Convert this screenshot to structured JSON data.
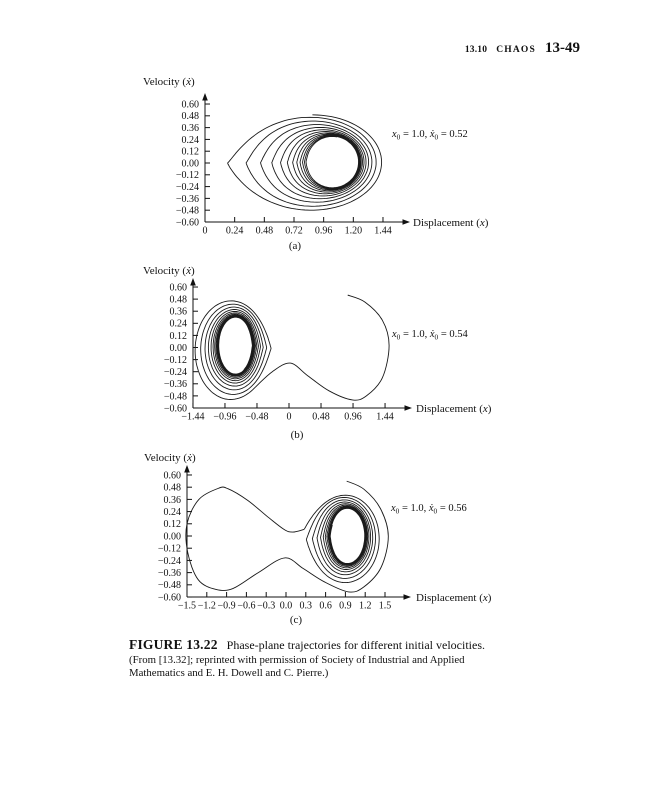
{
  "page": {
    "background": "#ffffff",
    "ink": "#111111",
    "curve_color": "#1a1a1a"
  },
  "header": {
    "section": "13.10",
    "chapter_title": "CHAOS",
    "page_number": "13-49"
  },
  "caption": {
    "figure_label": "FIGURE 13.22",
    "title": "Phase-plane trajectories for different initial velocities.",
    "source_lines": [
      "(From [13.32]; reprinted with permission of Society of Industrial and Applied",
      "Mathematics and E. H. Dowell and C. Pierre.)"
    ]
  },
  "chart_data": [
    {
      "type": "line",
      "panel_label": "(a)",
      "ylabel_parts": [
        {
          "t": "Velocity (",
          "s": "r"
        },
        {
          "t": "ẋ",
          "s": "i"
        },
        {
          "t": ")",
          "s": "r"
        }
      ],
      "xlabel_parts": [
        {
          "t": "Displacement (",
          "s": "r"
        },
        {
          "t": "x",
          "s": "i"
        },
        {
          "t": ")",
          "s": "r"
        }
      ],
      "annotation_parts": [
        {
          "t": "x",
          "s": "i"
        },
        {
          "t": "0",
          "s": "sub"
        },
        {
          "t": " = 1.0, ",
          "s": "r"
        },
        {
          "t": "ẋ",
          "s": "i"
        },
        {
          "t": "0",
          "s": "sub"
        },
        {
          "t": " = 0.52",
          "s": "r"
        }
      ],
      "initial_condition": {
        "x0": 1.0,
        "xdot0": 0.52
      },
      "xlim": [
        0,
        1.44
      ],
      "ylim": [
        -0.6,
        0.6
      ],
      "grid": false,
      "legend": false,
      "x_tick_values": [
        0,
        0.24,
        0.48,
        0.72,
        0.96,
        1.2,
        1.44
      ],
      "x_tick_labels": [
        "0",
        "0.24",
        "0.48",
        "0.72",
        "0.96",
        "1.20",
        "1.44"
      ],
      "y_tick_values": [
        0.6,
        0.48,
        0.36,
        0.24,
        0.12,
        0.0,
        -0.12,
        -0.24,
        -0.36,
        -0.48,
        -0.6
      ],
      "y_tick_labels": [
        "0.60",
        "0.48",
        "0.36",
        "0.24",
        "0.12",
        "0.00",
        "−0.12",
        "−0.24",
        "−0.36",
        "−0.48",
        "−0.60"
      ],
      "trajectory": {
        "description": "trajectory spirals from outer teardrop (tip near x=0.05, v=0) converging clockwise onto limit cycle around stable focus near x=1",
        "spiral": {
          "outer": {
            "cx": 0.745,
            "cy": 0.0,
            "w": 0.695,
            "h": 0.545,
            "q": 1.6
          },
          "inner": {
            "cx": 1.03,
            "cy": 0.01,
            "w": 0.21,
            "h": 0.26,
            "q": 6
          },
          "loops": 12,
          "decay": 0.25,
          "tip": "left",
          "start_phase": 1.75
        }
      }
    },
    {
      "type": "line",
      "panel_label": "(b)",
      "ylabel_parts": [
        {
          "t": "Velocity (",
          "s": "r"
        },
        {
          "t": "ẋ",
          "s": "i"
        },
        {
          "t": ")",
          "s": "r"
        }
      ],
      "xlabel_parts": [
        {
          "t": "Displacement (",
          "s": "r"
        },
        {
          "t": "x",
          "s": "i"
        },
        {
          "t": ")",
          "s": "r"
        }
      ],
      "annotation_parts": [
        {
          "t": "x",
          "s": "i"
        },
        {
          "t": "0",
          "s": "sub"
        },
        {
          "t": " = 1.0, ",
          "s": "r"
        },
        {
          "t": "ẋ",
          "s": "i"
        },
        {
          "t": "0",
          "s": "sub"
        },
        {
          "t": " = 0.54",
          "s": "r"
        }
      ],
      "initial_condition": {
        "x0": 1.0,
        "xdot0": 0.54
      },
      "xlim": [
        -1.44,
        1.44
      ],
      "ylim": [
        -0.6,
        0.6
      ],
      "grid": false,
      "legend": false,
      "x_tick_values": [
        -1.44,
        -0.96,
        -0.48,
        0,
        0.48,
        0.96,
        1.44
      ],
      "x_tick_labels": [
        "−1.44",
        "−0.96",
        "−0.48",
        "0",
        "0.48",
        "0.96",
        "1.44"
      ],
      "y_tick_values": [
        0.6,
        0.48,
        0.36,
        0.24,
        0.12,
        0.0,
        -0.12,
        -0.24,
        -0.36,
        -0.48,
        -0.6
      ],
      "y_tick_labels": [
        "0.60",
        "0.48",
        "0.36",
        "0.24",
        "0.12",
        "0.00",
        "−0.12",
        "−0.24",
        "−0.36",
        "−0.48",
        "−0.60"
      ],
      "trajectory": {
        "description": "starts in right well, makes one large clockwise excursion over the saddle and is captured by the left well, spiraling onto limit cycle near x=-0.8",
        "entry": [
          [
            0.88,
            0.52
          ],
          [
            1.14,
            0.45
          ],
          [
            1.4,
            0.27
          ],
          [
            1.5,
            0.02
          ],
          [
            1.4,
            -0.3
          ],
          [
            1.16,
            -0.48
          ],
          [
            0.95,
            -0.52
          ],
          [
            0.6,
            -0.43
          ],
          [
            0.28,
            -0.28
          ],
          [
            0.02,
            -0.155
          ],
          [
            -0.25,
            -0.24
          ]
        ],
        "spiral": {
          "outer": {
            "cx": -0.82,
            "cy": -0.02,
            "w": 0.62,
            "h": 0.53,
            "q": 2.2
          },
          "inner": {
            "cx": -0.8,
            "cy": 0.02,
            "w": 0.25,
            "h": 0.28,
            "q": 5
          },
          "loops": 12,
          "decay": 0.25,
          "tip": "right",
          "start_phase": 1.05
        }
      }
    },
    {
      "type": "line",
      "panel_label": "(c)",
      "ylabel_parts": [
        {
          "t": "Velocity (",
          "s": "r"
        },
        {
          "t": "ẋ",
          "s": "i"
        },
        {
          "t": ")",
          "s": "r"
        }
      ],
      "xlabel_parts": [
        {
          "t": "Displacement (",
          "s": "r"
        },
        {
          "t": "x",
          "s": "i"
        },
        {
          "t": ")",
          "s": "r"
        }
      ],
      "annotation_parts": [
        {
          "t": "x",
          "s": "i"
        },
        {
          "t": "0",
          "s": "sub"
        },
        {
          "t": " = 1.0, ",
          "s": "r"
        },
        {
          "t": "ẋ",
          "s": "i"
        },
        {
          "t": "0",
          "s": "sub"
        },
        {
          "t": " = 0.56",
          "s": "r"
        }
      ],
      "initial_condition": {
        "x0": 1.0,
        "xdot0": 0.56
      },
      "xlim": [
        -1.5,
        1.5
      ],
      "ylim": [
        -0.6,
        0.6
      ],
      "grid": false,
      "legend": false,
      "x_tick_values": [
        -1.5,
        -1.2,
        -0.9,
        -0.6,
        -0.3,
        0.0,
        0.3,
        0.6,
        0.9,
        1.2,
        1.5
      ],
      "x_tick_labels": [
        "−1.5",
        "−1.2",
        "−0.9",
        "−0.6",
        "−0.3",
        "0.0",
        "0.3",
        "0.6",
        "0.9",
        "1.2",
        "1.5"
      ],
      "y_tick_values": [
        0.6,
        0.48,
        0.36,
        0.24,
        0.12,
        0.0,
        -0.12,
        -0.24,
        -0.36,
        -0.48,
        -0.6
      ],
      "y_tick_labels": [
        "0.60",
        "0.48",
        "0.36",
        "0.24",
        "0.12",
        "0.00",
        "−0.12",
        "−0.24",
        "−0.36",
        "−0.48",
        "−0.60"
      ],
      "trajectory": {
        "description": "starts in right well, loops through both wells (around the full double-well) once, then returns and spirals onto limit cycle in right well near x=0.95",
        "entry": [
          [
            0.92,
            0.54
          ],
          [
            1.18,
            0.46
          ],
          [
            1.43,
            0.27
          ],
          [
            1.55,
            0.0
          ],
          [
            1.44,
            -0.31
          ],
          [
            1.18,
            -0.5
          ],
          [
            0.95,
            -0.55
          ],
          [
            0.58,
            -0.45
          ],
          [
            0.26,
            -0.32
          ],
          [
            -0.02,
            -0.215
          ],
          [
            -0.42,
            -0.36
          ],
          [
            -0.8,
            -0.515
          ],
          [
            -1.06,
            -0.525
          ],
          [
            -1.33,
            -0.43
          ],
          [
            -1.49,
            -0.16
          ],
          [
            -1.5,
            0.12
          ],
          [
            -1.32,
            0.36
          ],
          [
            -1.02,
            0.47
          ],
          [
            -0.88,
            0.465
          ],
          [
            -0.58,
            0.35
          ],
          [
            -0.28,
            0.19
          ],
          [
            -0.03,
            0.065
          ],
          [
            0.1,
            0.038
          ]
        ],
        "spiral": {
          "outer": {
            "cx": 0.82,
            "cy": -0.04,
            "w": 0.62,
            "h": 0.48,
            "q": 1.9
          },
          "inner": {
            "cx": 0.93,
            "cy": 0.0,
            "w": 0.26,
            "h": 0.27,
            "q": 5
          },
          "loops": 11,
          "decay": 0.27,
          "tip": "left",
          "start_phase": 0.5
        }
      }
    }
  ]
}
